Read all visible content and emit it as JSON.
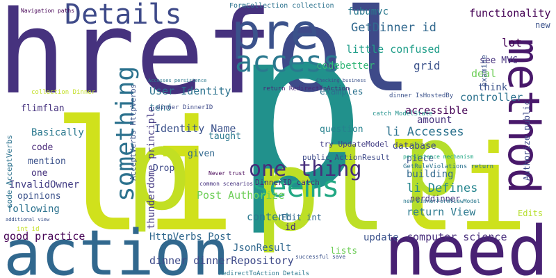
{
  "words": [
    {
      "text": "href",
      "color": "#46327e"
    },
    {
      "text": "ol",
      "color": "#3e4a89"
    },
    {
      "text": "pre",
      "color": "#3b528b"
    },
    {
      "text": "p",
      "color": "#21918c"
    },
    {
      "text": "li",
      "color": "#d0e11c"
    },
    {
      "text": "p",
      "color": "#c2df23"
    },
    {
      "text": "pl",
      "color": "#bddf26"
    },
    {
      "text": "li",
      "color": "#cde11d"
    },
    {
      "text": "p",
      "color": "#b5de2b"
    },
    {
      "text": "action",
      "color": "#31688e"
    },
    {
      "text": "need",
      "color": "#482173"
    },
    {
      "text": "method",
      "color": "#48186a"
    },
    {
      "text": "Details",
      "color": "#3e4a89"
    },
    {
      "text": "access",
      "color": "#2a788e"
    },
    {
      "text": "seems",
      "color": "#22a884"
    },
    {
      "text": "something",
      "color": "#2c728e"
    },
    {
      "text": "one thing",
      "color": "#472d7b"
    },
    {
      "text": "thunderdome principle",
      "color": "#443983"
    },
    {
      "text": "User Identity",
      "color": "#2c728e"
    },
    {
      "text": "Identity Name",
      "color": "#3b528b"
    },
    {
      "text": "GetDinner id",
      "color": "#31688e"
    },
    {
      "text": "functionality",
      "color": "#440154"
    },
    {
      "text": "little confused",
      "color": "#1f9e89"
    },
    {
      "text": "fubumvc",
      "color": "#2a788e"
    },
    {
      "text": "FormCollection collection",
      "color": "#2c728e"
    },
    {
      "text": "codebetter",
      "color": "#35b779"
    },
    {
      "text": "grid",
      "color": "#3b528b"
    },
    {
      "text": "see MVC",
      "color": "#46327e"
    },
    {
      "text": "lot",
      "color": "#440154"
    },
    {
      "text": "deal",
      "color": "#6ece58"
    },
    {
      "text": "think",
      "color": "#3b528b"
    },
    {
      "text": "controller",
      "color": "#2c728e"
    },
    {
      "text": "accessible",
      "color": "#440154"
    },
    {
      "text": "amount",
      "color": "#46327e"
    },
    {
      "text": "li Accesses",
      "color": "#2c728e"
    },
    {
      "text": "database",
      "color": "#3e4a89"
    },
    {
      "text": "piece",
      "color": "#3b528b"
    },
    {
      "text": "building",
      "color": "#31688e"
    },
    {
      "text": "li Defines",
      "color": "#25858e"
    },
    {
      "text": "nerddinner",
      "color": "#46327e"
    },
    {
      "text": "return View",
      "color": "#2a788e"
    },
    {
      "text": "update",
      "color": "#3b528b"
    },
    {
      "text": "computer science",
      "color": "#472d7b"
    },
    {
      "text": "examples",
      "color": "#2c728e"
    },
    {
      "text": "question",
      "color": "#26828e"
    },
    {
      "text": "try UpdateModel",
      "color": "#433e85"
    },
    {
      "text": "public ActionResult",
      "color": "#3e4a89"
    },
    {
      "text": "Post Authorize",
      "color": "#6ece58"
    },
    {
      "text": "DinnerID catch",
      "color": "#482878"
    },
    {
      "text": "content",
      "color": "#2a788e"
    },
    {
      "text": "Edit int",
      "color": "#31688e"
    },
    {
      "text": "id",
      "color": "#472d7b"
    },
    {
      "text": "JsonResult",
      "color": "#31688e"
    },
    {
      "text": "HttpVerbs Post",
      "color": "#31688e"
    },
    {
      "text": "dinner dinnerRepository",
      "color": "#3e4a89"
    },
    {
      "text": "lists",
      "color": "#6ece58"
    },
    {
      "text": "good practice",
      "color": "#440154"
    },
    {
      "text": "following",
      "color": "#2c728e"
    },
    {
      "text": "opinions",
      "color": "#3b528b"
    },
    {
      "text": "InvalidOwner",
      "color": "#433e85"
    },
    {
      "text": "one",
      "color": "#46327e"
    },
    {
      "text": "mention",
      "color": "#3b528b"
    },
    {
      "text": "code",
      "color": "#482878"
    },
    {
      "text": "Basically",
      "color": "#2a788e"
    },
    {
      "text": "flimflan",
      "color": "#46327e"
    },
    {
      "text": "given",
      "color": "#31688e"
    },
    {
      "text": "Drop",
      "color": "#3e4a89"
    },
    {
      "text": "taught",
      "color": "#2a788e"
    },
    {
      "text": "tend",
      "color": "#2c728e"
    },
    {
      "text": "Edits",
      "color": "#b5de2b"
    },
    {
      "text": "new",
      "color": "#3b528b"
    },
    {
      "text": "examine",
      "color": "#3b528b"
    },
    {
      "text": "Authorize public",
      "color": "#3e4a89"
    },
    {
      "text": "AcceptVerbs HttpVerbs",
      "color": "#3b528b"
    },
    {
      "text": "code AcceptVerbs",
      "color": "#2c728e"
    },
    {
      "text": "Navigation paths",
      "color": "#440154"
    },
    {
      "text": "return RedirectToAction",
      "color": "#482878"
    },
    {
      "text": "Accesses persistence",
      "color": "#2a788e"
    },
    {
      "text": "Checking business",
      "color": "#3b528b"
    },
    {
      "text": "dinner IsHostedBy",
      "color": "#3b528b"
    },
    {
      "text": "catch ModelState",
      "color": "#21918c"
    },
    {
      "text": "Never trust",
      "color": "#440154"
    },
    {
      "text": "common scenarios",
      "color": "#46327e"
    },
    {
      "text": "successful save",
      "color": "#3b528b"
    },
    {
      "text": "RedirectToAction Details",
      "color": "#2a788e"
    },
    {
      "text": "dinner DinnerID",
      "color": "#3e4a89"
    },
    {
      "text": "collection Dinner",
      "color": "#c2df23"
    },
    {
      "text": "int id",
      "color": "#c2df23"
    },
    {
      "text": "additional view",
      "color": "#3b528b"
    },
    {
      "text": "new DinnerFormViewModel",
      "color": "#2a788e"
    },
    {
      "text": "GetRuleViolations return",
      "color": "#2c728e"
    },
    {
      "text": "persistence mechanism",
      "color": "#22a884"
    }
  ]
}
